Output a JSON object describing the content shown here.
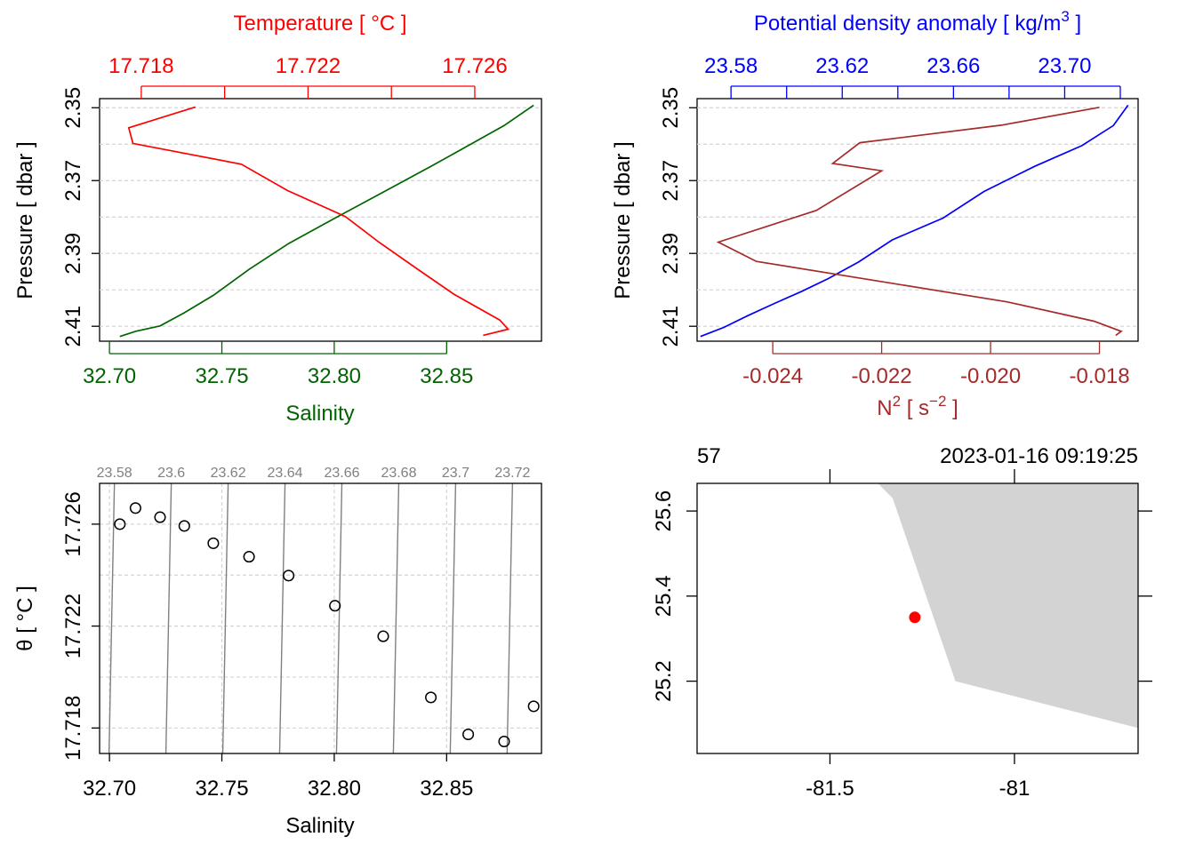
{
  "colors": {
    "temperature": "#ff0000",
    "salinity": "#006400",
    "sigma": "#0000ff",
    "n2": "#a52a2a",
    "grid": "#d3d3d3",
    "isopycnal": "#808080",
    "land": "#d3d3d3",
    "station": "#ff0000",
    "axis": "#000000"
  },
  "chart_data": [
    {
      "type": "line",
      "id": "profile-ts",
      "title": "Temperature [ °C ]",
      "xlabel": "Salinity",
      "ylabel": "Pressure [ dbar ]",
      "grid": true,
      "ylim": [
        2.3475,
        2.4141
      ],
      "y_ticks": [
        2.35,
        2.37,
        2.39,
        2.41
      ],
      "y_tick_labels": [
        "2.35",
        "2.37",
        "2.39",
        "2.41"
      ],
      "y_grid": [
        2.35,
        2.36,
        2.37,
        2.38,
        2.39,
        2.4,
        2.41
      ],
      "top_axis": {
        "label": "Temperature [ °C ]",
        "range": [
          17.717,
          17.7276
        ],
        "ticks": [
          17.718,
          17.72,
          17.722,
          17.724,
          17.726
        ],
        "labeled_ticks": [
          17.718,
          17.722,
          17.726
        ],
        "tick_labels": [
          "17.718",
          "17.722",
          "17.726"
        ]
      },
      "bottom_axis": {
        "label": "Salinity",
        "range": [
          32.6956,
          32.8922
        ],
        "ticks": [
          32.7,
          32.75,
          32.8,
          32.85
        ],
        "tick_labels": [
          "32.70",
          "32.75",
          "32.80",
          "32.85"
        ]
      },
      "series": [
        {
          "name": "Temperature",
          "axis": "top",
          "x": [
            17.7193,
            17.7177,
            17.7178,
            17.7204,
            17.7215,
            17.7229,
            17.7237,
            17.7246,
            17.7255,
            17.7266,
            17.7268,
            17.7262
          ],
          "y": [
            2.3498,
            2.3555,
            2.3598,
            2.3655,
            2.3727,
            2.3799,
            2.3869,
            2.3941,
            2.4012,
            2.4083,
            2.4108,
            2.4125
          ]
        },
        {
          "name": "Salinity",
          "axis": "bottom",
          "x": [
            32.8887,
            32.8756,
            32.8596,
            32.843,
            32.8218,
            32.8003,
            32.7797,
            32.7621,
            32.7462,
            32.7333,
            32.7225,
            32.7116,
            32.7046
          ],
          "y": [
            2.3493,
            2.3549,
            2.3604,
            2.3661,
            2.3732,
            2.3803,
            2.3873,
            2.3944,
            2.4015,
            2.4063,
            2.4099,
            2.4114,
            2.4128
          ]
        }
      ]
    },
    {
      "type": "line",
      "id": "profile-density",
      "title": "Potential density anomaly [ kg/m³ ]",
      "xlabel": "N² [ s⁻² ]",
      "ylabel": "Pressure [ dbar ]",
      "grid": true,
      "ylim": [
        2.3475,
        2.4141
      ],
      "y_ticks": [
        2.35,
        2.37,
        2.39,
        2.41
      ],
      "y_tick_labels": [
        "2.35",
        "2.37",
        "2.39",
        "2.41"
      ],
      "y_grid": [
        2.35,
        2.36,
        2.37,
        2.38,
        2.39,
        2.4,
        2.41
      ],
      "top_axis": {
        "label_main": "Potential density anomaly [ kg/m",
        "label_sup": "3",
        "label_end": " ]",
        "range": [
          23.5678,
          23.7264
        ],
        "ticks": [
          23.58,
          23.6,
          23.62,
          23.64,
          23.66,
          23.68,
          23.7,
          23.72
        ],
        "labeled_ticks": [
          23.58,
          23.62,
          23.66,
          23.7
        ],
        "tick_labels": [
          "23.58",
          "23.62",
          "23.66",
          "23.70"
        ]
      },
      "bottom_axis": {
        "label_main": "N",
        "label_sup": "2",
        "label_mid": " [ s",
        "label_sup2": "−2",
        "label_end": " ]",
        "range": [
          -0.02539,
          -0.01729
        ],
        "ticks": [
          -0.024,
          -0.022,
          -0.02,
          -0.018
        ],
        "tick_labels": [
          "-0.024",
          "-0.022",
          "-0.020",
          "-0.018"
        ]
      },
      "series": [
        {
          "name": "Potential density anomaly",
          "axis": "top",
          "x": [
            23.7228,
            23.7175,
            23.7062,
            23.6892,
            23.671,
            23.6562,
            23.638,
            23.6258,
            23.615,
            23.6055,
            23.5957,
            23.586,
            23.5775,
            23.573,
            23.569
          ],
          "y": [
            2.3493,
            2.3549,
            2.3604,
            2.3661,
            2.373,
            2.3803,
            2.3863,
            2.3924,
            2.3969,
            2.4004,
            2.4037,
            2.4071,
            2.4103,
            2.4116,
            2.4128
          ]
        },
        {
          "name": "N²",
          "axis": "bottom",
          "x": [
            -0.018,
            -0.0198,
            -0.0224,
            -0.0229,
            -0.022,
            -0.0232,
            -0.025,
            -0.0243,
            -0.0197,
            -0.0181,
            -0.0176,
            -0.0177
          ],
          "y": [
            2.3499,
            2.3548,
            2.3596,
            2.3653,
            2.3673,
            2.3782,
            2.3869,
            2.3922,
            2.4033,
            2.4086,
            2.4114,
            2.4125
          ]
        }
      ]
    },
    {
      "type": "scatter",
      "id": "ts-diagram",
      "xlabel": "Salinity",
      "ylabel": "θ [ °C ]",
      "grid": true,
      "xlim": [
        32.6956,
        32.8922
      ],
      "ylim": [
        17.717,
        17.7276
      ],
      "x_ticks": [
        32.7,
        32.75,
        32.8,
        32.85
      ],
      "x_tick_labels": [
        "32.70",
        "32.75",
        "32.80",
        "32.85"
      ],
      "y_ticks": [
        17.718,
        17.722,
        17.726
      ],
      "y_tick_labels": [
        "17.718",
        "17.722",
        "17.726"
      ],
      "y_grid": [
        17.718,
        17.72,
        17.722,
        17.724,
        17.726
      ],
      "points": {
        "x": [
          32.7046,
          32.7116,
          32.7225,
          32.7333,
          32.7462,
          32.7621,
          32.7797,
          32.8003,
          32.8218,
          32.843,
          32.8596,
          32.8756,
          32.8887
        ],
        "y": [
          17.726,
          17.72663,
          17.72627,
          17.72593,
          17.72525,
          17.72472,
          17.72398,
          17.7228,
          17.7216,
          17.7192,
          17.71775,
          17.71747,
          17.71885
        ]
      },
      "isopycnals": {
        "values": [
          23.58,
          23.6,
          23.62,
          23.64,
          23.66,
          23.68,
          23.7,
          23.72
        ],
        "labels": [
          "23.58",
          "23.6",
          "23.62",
          "23.64",
          "23.66",
          "23.68",
          "23.7",
          "23.72"
        ],
        "salinity_at_top": [
          32.7022,
          32.7275,
          32.7528,
          32.7781,
          32.8034,
          32.8287,
          32.854,
          32.8793
        ],
        "salinity_at_bottom": [
          32.6998,
          32.7251,
          32.7504,
          32.7757,
          32.801,
          32.8263,
          32.8516,
          32.8769
        ]
      }
    },
    {
      "type": "map",
      "id": "station-map",
      "station_label": "57",
      "date_label": "2023-01-16 09:19:25",
      "xlim": [
        -81.86,
        -80.665
      ],
      "ylim": [
        25.03,
        25.665
      ],
      "x_ticks": [
        -81.5,
        -81
      ],
      "x_tick_labels": [
        "-81.5",
        "-81"
      ],
      "y_ticks": [
        25.2,
        25.4,
        25.6
      ],
      "y_tick_labels": [
        "25.2",
        "25.4",
        "25.6"
      ],
      "top_ticks": [
        -81.5,
        -81
      ],
      "right_ticks": [
        25.2,
        25.4,
        25.6
      ],
      "land_polygon": {
        "lon": [
          -81.37,
          -81.33,
          -81.16,
          -80.665,
          -80.665
        ],
        "lat": [
          25.665,
          25.63,
          25.2,
          25.09,
          25.665
        ]
      },
      "station": {
        "lon": -81.27,
        "lat": 25.35
      }
    }
  ]
}
